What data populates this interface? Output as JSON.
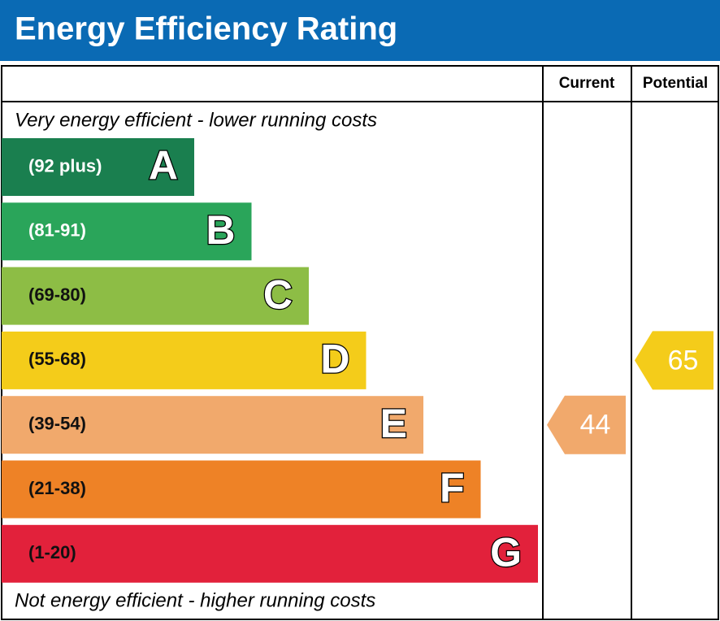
{
  "chart_data": {
    "type": "epc_rating",
    "title": "Energy Efficiency Rating",
    "columns": [
      "Current",
      "Potential"
    ],
    "top_label": "Very energy efficient - lower running costs",
    "bottom_label": "Not energy efficient - higher running costs",
    "bands": [
      {
        "range": "(92 plus)",
        "letter": "A",
        "color": "#1a7f4f"
      },
      {
        "range": "(81-91)",
        "letter": "B",
        "color": "#2aa55a"
      },
      {
        "range": "(69-80)",
        "letter": "C",
        "color": "#8dbd45"
      },
      {
        "range": "(55-68)",
        "letter": "D",
        "color": "#f4cc1a"
      },
      {
        "range": "(39-54)",
        "letter": "E",
        "color": "#f1a96c"
      },
      {
        "range": "(21-38)",
        "letter": "F",
        "color": "#ee8226"
      },
      {
        "range": "(1-20)",
        "letter": "G",
        "color": "#e2213b"
      }
    ],
    "current": {
      "value": 44,
      "color": "#f1a96c"
    },
    "potential": {
      "value": 65,
      "color": "#f4cc1a"
    }
  }
}
